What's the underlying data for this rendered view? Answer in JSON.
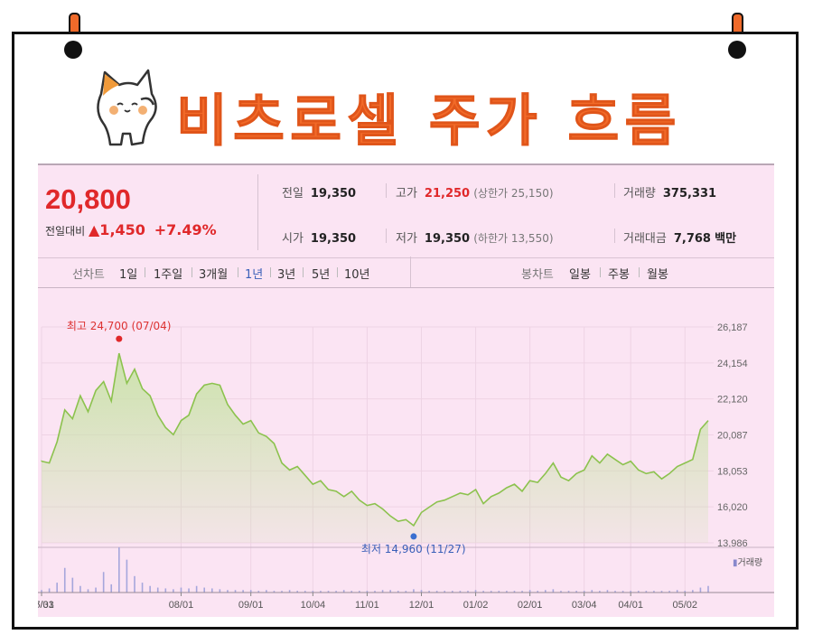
{
  "title": "비츠로셀 주가 흐름",
  "summary": {
    "price": "20,800",
    "change_label": "전일대비",
    "change_amount": "▲1,450",
    "change_pct": "+7.49%",
    "prev_label": "전일",
    "prev_value": "19,350",
    "open_label": "시가",
    "open_value": "19,350",
    "high_label": "고가",
    "high_value": "21,250",
    "high_sub": "(상한가 25,150)",
    "low_label": "저가",
    "low_value": "19,350",
    "low_sub": "(하한가 13,550)",
    "volume_label": "거래량",
    "volume_value": "375,331",
    "amount_label": "거래대금",
    "amount_value": "7,768",
    "amount_unit": "백만"
  },
  "tabs": {
    "line_label": "선차트",
    "periods": [
      "1일",
      "1주일",
      "3개월",
      "1년",
      "3년",
      "5년",
      "10년"
    ],
    "selected": "1년",
    "candle_label": "봉차트",
    "candle_periods": [
      "일봉",
      "주봉",
      "월봉"
    ]
  },
  "colors": {
    "accent": "#f26a28",
    "up": "#e0282a",
    "line": "#8cc24e",
    "fill": "#c9e3a8",
    "max_dot": "#e0282a",
    "min_dot": "#3a6fd0"
  },
  "chart_data": {
    "type": "area",
    "y_ticks": [
      "26,187",
      "24,154",
      "22,120",
      "20,087",
      "18,053",
      "16,020",
      "13,986"
    ],
    "ylim": [
      13986,
      26187
    ],
    "x_ticks": [
      "05/31",
      "07/03",
      "08/01",
      "09/01",
      "10/04",
      "11/01",
      "12/01",
      "01/02",
      "02/01",
      "03/04",
      "04/01",
      "05/02"
    ],
    "max_annotation": "최고 24,700 (07/04)",
    "min_annotation": "최저 14,960 (11/27)",
    "volume_legend": "거래량",
    "x": [
      "05/31",
      "06/03",
      "06/06",
      "06/10",
      "06/13",
      "06/17",
      "06/20",
      "06/24",
      "06/27",
      "07/01",
      "07/04",
      "07/08",
      "07/11",
      "07/15",
      "07/18",
      "07/22",
      "07/25",
      "07/29",
      "08/01",
      "08/05",
      "08/08",
      "08/12",
      "08/15",
      "08/19",
      "08/22",
      "08/26",
      "08/29",
      "09/01",
      "09/05",
      "09/09",
      "09/13",
      "09/17",
      "09/21",
      "09/25",
      "09/29",
      "10/04",
      "10/08",
      "10/12",
      "10/16",
      "10/20",
      "10/24",
      "10/28",
      "11/01",
      "11/05",
      "11/09",
      "11/13",
      "11/17",
      "11/21",
      "11/27",
      "12/01",
      "12/05",
      "12/09",
      "12/13",
      "12/17",
      "12/21",
      "12/26",
      "01/02",
      "01/06",
      "01/10",
      "01/14",
      "01/18",
      "01/22",
      "01/27",
      "02/01",
      "02/05",
      "02/09",
      "02/13",
      "02/17",
      "02/21",
      "02/25",
      "03/04",
      "03/08",
      "03/12",
      "03/16",
      "03/20",
      "03/25",
      "04/01",
      "04/05",
      "04/09",
      "04/13",
      "04/17",
      "04/21",
      "04/25",
      "05/02",
      "05/06",
      "05/10",
      "05/14"
    ],
    "values": [
      18600,
      18500,
      19700,
      21500,
      21000,
      22300,
      21400,
      22600,
      23100,
      22000,
      24700,
      23000,
      23800,
      22700,
      22300,
      21200,
      20500,
      20100,
      20900,
      21200,
      22400,
      22900,
      23000,
      22900,
      21800,
      21200,
      20700,
      20900,
      20200,
      20000,
      19600,
      18500,
      18100,
      18300,
      17800,
      17300,
      17500,
      17000,
      16900,
      16600,
      16900,
      16400,
      16100,
      16200,
      15900,
      15500,
      15200,
      15300,
      14960,
      15700,
      16000,
      16300,
      16400,
      16600,
      16800,
      16700,
      17000,
      16200,
      16600,
      16800,
      17100,
      17300,
      16900,
      17500,
      17400,
      17900,
      18500,
      17700,
      17500,
      17900,
      18100,
      18900,
      18500,
      19000,
      18700,
      18400,
      18600,
      18100,
      17900,
      18000,
      17600,
      17900,
      18300,
      18500,
      18700,
      20400,
      20900
    ],
    "volume": [
      3,
      5,
      12,
      30,
      18,
      8,
      4,
      6,
      25,
      10,
      55,
      40,
      20,
      12,
      8,
      6,
      5,
      4,
      6,
      5,
      8,
      6,
      5,
      4,
      3,
      3,
      3,
      3,
      2,
      3,
      2,
      2,
      3,
      2,
      2,
      2,
      2,
      2,
      2,
      3,
      2,
      2,
      2,
      2,
      3,
      3,
      2,
      2,
      4,
      3,
      2,
      2,
      2,
      2,
      2,
      2,
      3,
      2,
      2,
      2,
      2,
      2,
      2,
      3,
      2,
      3,
      4,
      2,
      2,
      2,
      2,
      3,
      2,
      3,
      2,
      2,
      2,
      2,
      2,
      2,
      2,
      2,
      3,
      2,
      3,
      6,
      8
    ]
  }
}
